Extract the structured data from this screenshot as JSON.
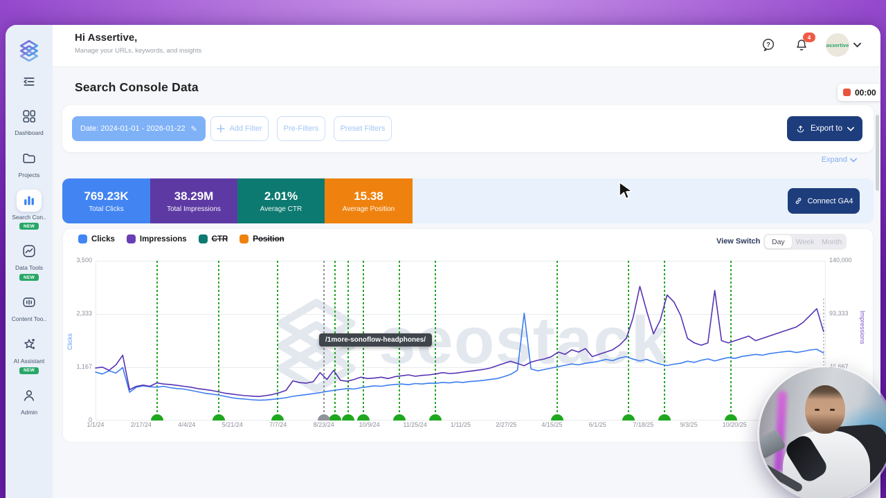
{
  "header": {
    "greeting": "Hi Assertive,",
    "subtitle": "Manage your URLs, keywords, and insights",
    "notification_count": "4",
    "username": "assertive"
  },
  "sidebar": {
    "items": [
      {
        "label": "Dashboard"
      },
      {
        "label": "Projects"
      },
      {
        "label": "Search Con..",
        "badge": "NEW",
        "active": true
      },
      {
        "label": "Data Tools",
        "badge": "NEW"
      },
      {
        "label": "Content Too.."
      },
      {
        "label": "AI Assistant",
        "badge": "NEW"
      },
      {
        "label": "Admin"
      }
    ]
  },
  "page": {
    "title": "Search Console Data"
  },
  "recording": {
    "timer": "00:00"
  },
  "filters": {
    "date_label": "Date: 2024-01-01 - 2026-01-22",
    "add_filter": "Add Filter",
    "pre_filters": "Pre-Filters",
    "preset_filters": "Preset Filters",
    "export_label": "Export to",
    "expand_label": "Expand"
  },
  "stats": [
    {
      "value": "769.23K",
      "label": "Total Clicks",
      "color": "#4285f2"
    },
    {
      "value": "38.29M",
      "label": "Total Impressions",
      "color": "#5d3aa3"
    },
    {
      "value": "2.01%",
      "label": "Average CTR",
      "color": "#0d7a71"
    },
    {
      "value": "15.38",
      "label": "Average Position",
      "color": "#ef820e"
    }
  ],
  "connect_ga4_label": "Connect GA4",
  "legend": [
    {
      "label": "Clicks",
      "color": "#4285f2",
      "disabled": false
    },
    {
      "label": "Impressions",
      "color": "#6a3fb5",
      "disabled": false
    },
    {
      "label": "CTR",
      "color": "#0d7a71",
      "disabled": true
    },
    {
      "label": "Position",
      "color": "#ef820e",
      "disabled": true
    }
  ],
  "view_switch": {
    "label": "View Switch",
    "options": [
      "Day",
      "Week",
      "Month"
    ],
    "selected": "Day"
  },
  "watermark": "seostack",
  "tooltip": "/1more-sonoflow-headphones/",
  "chart_data": {
    "type": "line",
    "sampling_note": "daily series estimated at weekly resolution",
    "x_axis": {
      "tick_labels": [
        "1/1/24",
        "2/17/24",
        "4/4/24",
        "5/21/24",
        "7/7/24",
        "8/23/24",
        "10/9/24",
        "11/25/24",
        "1/11/25",
        "2/27/25",
        "4/15/25",
        "6/1/25",
        "7/18/25",
        "9/3/25",
        "10/20/25"
      ],
      "range_days": 752,
      "tick_interval_days": 47
    },
    "y_left": {
      "label": "Clicks",
      "ticks": [
        "3,500",
        "2,333",
        "1,167",
        "0"
      ],
      "max": 3500,
      "min": 0
    },
    "y_right": {
      "label": "Impressions",
      "ticks": [
        "140,000",
        "93,333",
        "46,667"
      ],
      "max": 140000,
      "min": 0
    },
    "grid": true,
    "series": [
      {
        "name": "Clicks",
        "axis": "left",
        "color": "#3b7df0",
        "values": [
          1060,
          1020,
          1090,
          1040,
          1160,
          620,
          730,
          760,
          740,
          730,
          750,
          720,
          700,
          690,
          660,
          630,
          600,
          580,
          560,
          530,
          500,
          480,
          470,
          455,
          445,
          450,
          465,
          480,
          500,
          530,
          550,
          570,
          590,
          610,
          640,
          660,
          680,
          700,
          690,
          720,
          740,
          760,
          750,
          775,
          790,
          800,
          785,
          810,
          800,
          820,
          815,
          835,
          825,
          845,
          835,
          855,
          865,
          880,
          900,
          920,
          960,
          1010,
          1100,
          2350,
          1130,
          1090,
          1120,
          1150,
          1180,
          1210,
          1240,
          1220,
          1255,
          1275,
          1300,
          1340,
          1310,
          1370,
          1400,
          1345,
          1305,
          1340,
          1280,
          1235,
          1205,
          1235,
          1255,
          1300,
          1275,
          1320,
          1350,
          1305,
          1345,
          1380,
          1360,
          1405,
          1425,
          1450,
          1430,
          1465,
          1485,
          1505,
          1520,
          1490,
          1515,
          1545,
          1560,
          1480
        ]
      },
      {
        "name": "Impressions",
        "axis": "right",
        "color": "#5532b4",
        "values": [
          46000,
          46800,
          44000,
          48800,
          57200,
          27000,
          30000,
          31000,
          30000,
          33000,
          32000,
          31600,
          30800,
          30000,
          29200,
          28000,
          27200,
          26400,
          25200,
          24000,
          23200,
          22400,
          21800,
          21400,
          21000,
          21800,
          22800,
          24400,
          26400,
          34800,
          33200,
          32800,
          34000,
          42000,
          36000,
          44000,
          35200,
          34400,
          36000,
          38000,
          36800,
          37200,
          38000,
          36800,
          38400,
          39200,
          40000,
          38800,
          39600,
          40000,
          40800,
          42000,
          41200,
          41600,
          42400,
          43200,
          44000,
          44800,
          46000,
          48000,
          50000,
          52000,
          50000,
          48000,
          51200,
          52800,
          54000,
          56000,
          60000,
          58000,
          62000,
          60000,
          63000,
          56000,
          58000,
          60000,
          62000,
          66000,
          72000,
          90000,
          117600,
          96000,
          76000,
          88000,
          110000,
          104000,
          92000,
          72000,
          68000,
          66000,
          68000,
          114000,
          70000,
          68000,
          70000,
          72000,
          74000,
          70000,
          72000,
          74000,
          76000,
          78000,
          80000,
          82000,
          86000,
          92000,
          98000,
          78000
        ]
      }
    ],
    "annotations": {
      "color": "#1fa71f",
      "highlight_color": "#8f939b",
      "lines": [
        {
          "date": "3/4/24",
          "pos": 0.084
        },
        {
          "date": "5/7/24",
          "pos": 0.169
        },
        {
          "date": "7/6/24",
          "pos": 0.249
        },
        {
          "date": "9/4/24",
          "pos": 0.328
        },
        {
          "date": "9/17/24",
          "pos": 0.346
        },
        {
          "date": "10/3/24",
          "pos": 0.367
        },
        {
          "date": "11/9/24",
          "pos": 0.416
        },
        {
          "date": "12/16/24",
          "pos": 0.465
        },
        {
          "date": "4/20/25",
          "pos": 0.632
        },
        {
          "date": "7/3/25",
          "pos": 0.73
        },
        {
          "date": "8/9/25",
          "pos": 0.779
        },
        {
          "date": "10/16/25",
          "pos": 0.87
        }
      ],
      "highlighted": {
        "date": "8/23/24",
        "pos": 0.313,
        "label": "/1more-sonoflow-headphones/"
      }
    },
    "end_marker_pos": 0.997,
    "legend_position": "top-left"
  }
}
